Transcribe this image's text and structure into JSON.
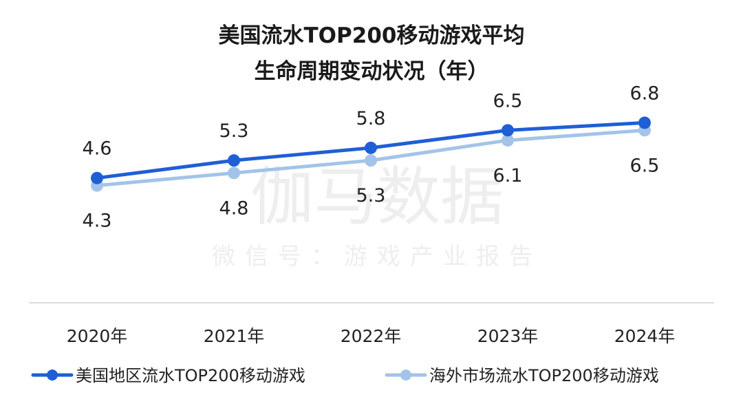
{
  "chart_data": {
    "type": "line",
    "title_line1": "美国流水TOP200移动游戏平均",
    "title_line2": "生命周期变动状况（年）",
    "categories": [
      "2020年",
      "2021年",
      "2022年",
      "2023年",
      "2024年"
    ],
    "series": [
      {
        "name": "美国地区流水TOP200移动游戏",
        "values": [
          4.6,
          5.3,
          5.8,
          6.5,
          6.8
        ],
        "color": "#1f5fd6"
      },
      {
        "name": "海外市场流水TOP200移动游戏",
        "values": [
          4.3,
          4.8,
          5.3,
          6.1,
          6.5
        ],
        "color": "#a3c4e8"
      }
    ],
    "data_labels": {
      "series1": [
        "4.6",
        "5.3",
        "5.8",
        "6.5",
        "6.8"
      ],
      "series2": [
        "4.3",
        "4.8",
        "5.3",
        "6.1",
        "6.5"
      ]
    },
    "legend_position": "bottom",
    "grid": false
  },
  "watermark": {
    "line1": "伽马数据",
    "line2": "微信号：游戏产业报告"
  }
}
